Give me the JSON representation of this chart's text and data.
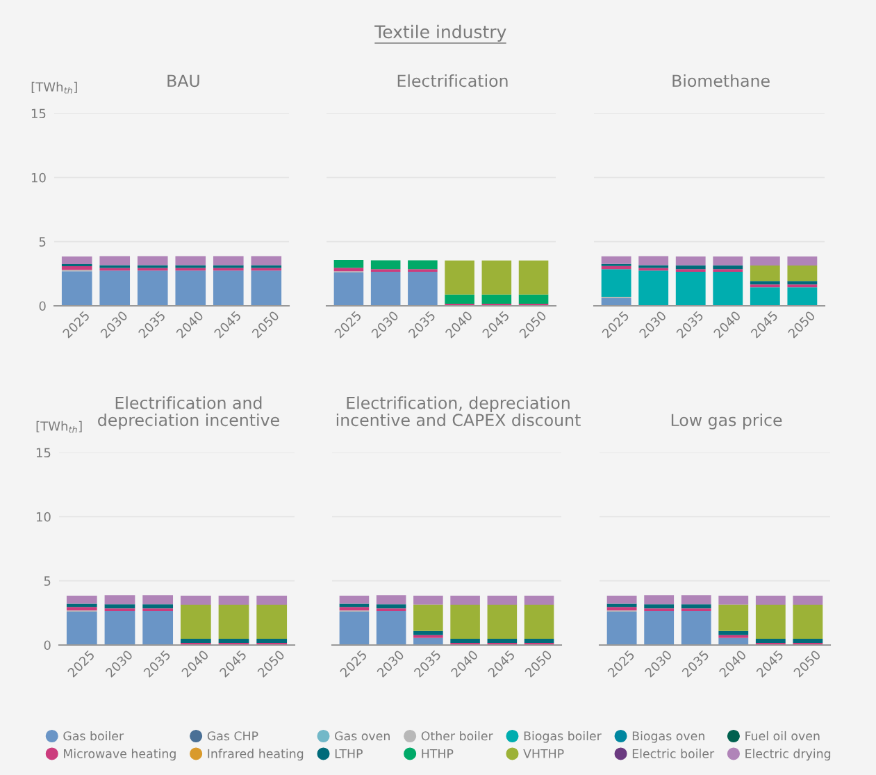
{
  "chart_data": [
    {
      "type": "bar",
      "title": "BAU",
      "ylabel": "[TWh$_{th}$]",
      "annotations": [
        "Textile industry"
      ],
      "stacked": true,
      "categories": [
        "2025",
        "2030",
        "2035",
        "2040",
        "2045",
        "2050"
      ],
      "ylim": [
        0,
        15
      ],
      "yticks": [
        0,
        5,
        10,
        15
      ],
      "grid": "y",
      "legend": "bottom",
      "marker": "circle",
      "series": [
        {
          "name": "Gas boiler",
          "color": "#6a95c6",
          "values": [
            2.7,
            2.75,
            2.75,
            2.75,
            2.75,
            2.75
          ]
        },
        {
          "name": "Gas CHP",
          "color": "#4a7096",
          "values": [
            0,
            0,
            0,
            0,
            0,
            0
          ]
        },
        {
          "name": "Gas oven",
          "color": "#72b8c8",
          "values": [
            0,
            0,
            0,
            0,
            0,
            0
          ]
        },
        {
          "name": "Other boiler",
          "color": "#b8b8b8",
          "values": [
            0.1,
            0,
            0,
            0,
            0,
            0
          ]
        },
        {
          "name": "Biogas boiler",
          "color": "#00adaf",
          "values": [
            0,
            0,
            0,
            0,
            0,
            0
          ]
        },
        {
          "name": "Biogas oven",
          "color": "#0087a0",
          "values": [
            0,
            0,
            0,
            0,
            0,
            0
          ]
        },
        {
          "name": "Fuel oil oven",
          "color": "#00614f",
          "values": [
            0,
            0,
            0,
            0,
            0,
            0
          ]
        },
        {
          "name": "Microwave heating",
          "color": "#cc3c7d",
          "values": [
            0.28,
            0.2,
            0.2,
            0.2,
            0.2,
            0.2
          ]
        },
        {
          "name": "Infrared heating",
          "color": "#d99a2b",
          "values": [
            0,
            0,
            0,
            0,
            0,
            0
          ]
        },
        {
          "name": "LTHP",
          "color": "#006b7a",
          "values": [
            0.17,
            0.22,
            0.22,
            0.22,
            0.22,
            0.22
          ]
        },
        {
          "name": "HTHP",
          "color": "#00a968",
          "values": [
            0,
            0,
            0,
            0,
            0,
            0
          ]
        },
        {
          "name": "VHTHP",
          "color": "#9cb237",
          "values": [
            0,
            0,
            0,
            0,
            0,
            0
          ]
        },
        {
          "name": "Electric boiler",
          "color": "#6b3a80",
          "values": [
            0,
            0,
            0,
            0,
            0,
            0
          ]
        },
        {
          "name": "Electric drying",
          "color": "#b084b8",
          "values": [
            0.6,
            0.7,
            0.7,
            0.7,
            0.7,
            0.7
          ]
        }
      ]
    },
    {
      "type": "bar",
      "title": "Electrification",
      "stacked": true,
      "categories": [
        "2025",
        "2030",
        "2035",
        "2040",
        "2045",
        "2050"
      ],
      "ylim": [
        0,
        15
      ],
      "yticks": [
        0,
        5,
        10,
        15
      ],
      "grid": "y",
      "tick_labels": "x",
      "series": [
        {
          "color": "#6a95c6",
          "values": [
            2.6,
            2.65,
            2.65,
            0,
            0,
            0
          ]
        },
        {
          "color": "#b8b8b8",
          "values": [
            0.1,
            0,
            0,
            0,
            0,
            0
          ]
        },
        {
          "color": "#cc3c7d",
          "values": [
            0.27,
            0.2,
            0.2,
            0.16,
            0.16,
            0.16
          ]
        },
        {
          "color": "#00a968",
          "values": [
            0.6,
            0.7,
            0.7,
            0.72,
            0.72,
            0.72
          ]
        },
        {
          "color": "#9cb237",
          "values": [
            0,
            0,
            0,
            2.65,
            2.65,
            2.65
          ]
        }
      ]
    },
    {
      "type": "bar",
      "title": "Biomethane",
      "stacked": true,
      "categories": [
        "2025",
        "2030",
        "2035",
        "2040",
        "2045",
        "2050"
      ],
      "ylim": [
        0,
        15
      ],
      "yticks": [
        0,
        5,
        10,
        15
      ],
      "grid": "y",
      "tick_labels": "x",
      "series": [
        {
          "color": "#6a95c6",
          "values": [
            0.6,
            0,
            0,
            0,
            0,
            0
          ]
        },
        {
          "color": "#b8b8b8",
          "values": [
            0.1,
            0,
            0,
            0,
            0,
            0
          ]
        },
        {
          "color": "#00adaf",
          "values": [
            2.15,
            2.75,
            2.65,
            2.65,
            1.45,
            1.45
          ]
        },
        {
          "color": "#cc3c7d",
          "values": [
            0.25,
            0.2,
            0.2,
            0.2,
            0.22,
            0.22
          ]
        },
        {
          "color": "#006b7a",
          "values": [
            0.16,
            0.22,
            0.3,
            0.3,
            0.27,
            0.27
          ]
        },
        {
          "color": "#9cb237",
          "values": [
            0,
            0,
            0,
            0,
            1.2,
            1.2
          ]
        },
        {
          "color": "#b084b8",
          "values": [
            0.6,
            0.7,
            0.7,
            0.7,
            0.7,
            0.7
          ]
        }
      ]
    },
    {
      "type": "bar",
      "title": "Electrification and\ndepreciation incentive",
      "ylabel": "[TWh$_{th}$]",
      "stacked": true,
      "categories": [
        "2025",
        "2030",
        "2035",
        "2040",
        "2045",
        "2050"
      ],
      "ylim": [
        0,
        15
      ],
      "yticks": [
        0,
        5,
        10,
        15
      ],
      "grid": "y",
      "series": [
        {
          "color": "#6a95c6",
          "values": [
            2.6,
            2.65,
            2.65,
            0,
            0,
            0
          ]
        },
        {
          "color": "#b8b8b8",
          "values": [
            0.1,
            0,
            0,
            0,
            0,
            0
          ]
        },
        {
          "color": "#cc3c7d",
          "values": [
            0.27,
            0.2,
            0.2,
            0.16,
            0.16,
            0.16
          ]
        },
        {
          "color": "#006b7a",
          "values": [
            0.25,
            0.33,
            0.33,
            0.33,
            0.33,
            0.33
          ]
        },
        {
          "color": "#9cb237",
          "values": [
            0,
            0,
            0,
            2.65,
            2.65,
            2.65
          ]
        },
        {
          "color": "#b084b8",
          "values": [
            0.62,
            0.7,
            0.7,
            0.7,
            0.7,
            0.7
          ]
        }
      ]
    },
    {
      "type": "bar",
      "title": "Electrification, depreciation\nincentive and CAPEX discount",
      "stacked": true,
      "categories": [
        "2025",
        "2030",
        "2035",
        "2040",
        "2045",
        "2050"
      ],
      "ylim": [
        0,
        15
      ],
      "yticks": [
        0,
        5,
        10,
        15
      ],
      "grid": "y",
      "tick_labels": "x",
      "series": [
        {
          "color": "#6a95c6",
          "values": [
            2.6,
            2.65,
            0.55,
            0,
            0,
            0
          ]
        },
        {
          "color": "#b8b8b8",
          "values": [
            0.1,
            0,
            0,
            0,
            0,
            0
          ]
        },
        {
          "color": "#cc3c7d",
          "values": [
            0.27,
            0.2,
            0.22,
            0.16,
            0.16,
            0.16
          ]
        },
        {
          "color": "#006b7a",
          "values": [
            0.25,
            0.33,
            0.33,
            0.33,
            0.33,
            0.33
          ]
        },
        {
          "color": "#9cb237",
          "values": [
            0,
            0,
            2.05,
            2.65,
            2.65,
            2.65
          ]
        },
        {
          "color": "#b084b8",
          "values": [
            0.62,
            0.7,
            0.7,
            0.7,
            0.7,
            0.7
          ]
        }
      ]
    },
    {
      "type": "bar",
      "title": "Low gas price",
      "stacked": true,
      "categories": [
        "2025",
        "2030",
        "2035",
        "2040",
        "2045",
        "2050"
      ],
      "ylim": [
        0,
        15
      ],
      "yticks": [
        0,
        5,
        10,
        15
      ],
      "grid": "y",
      "tick_labels": "x",
      "series": [
        {
          "color": "#6a95c6",
          "values": [
            2.6,
            2.65,
            2.65,
            0.55,
            0,
            0
          ]
        },
        {
          "color": "#b8b8b8",
          "values": [
            0.1,
            0,
            0,
            0,
            0,
            0
          ]
        },
        {
          "color": "#cc3c7d",
          "values": [
            0.27,
            0.2,
            0.2,
            0.22,
            0.16,
            0.16
          ]
        },
        {
          "color": "#006b7a",
          "values": [
            0.25,
            0.33,
            0.33,
            0.33,
            0.33,
            0.33
          ]
        },
        {
          "color": "#9cb237",
          "values": [
            0,
            0,
            0,
            2.05,
            2.65,
            2.65
          ]
        },
        {
          "color": "#b084b8",
          "values": [
            0.62,
            0.7,
            0.7,
            0.7,
            0.7,
            0.7
          ]
        }
      ]
    }
  ]
}
